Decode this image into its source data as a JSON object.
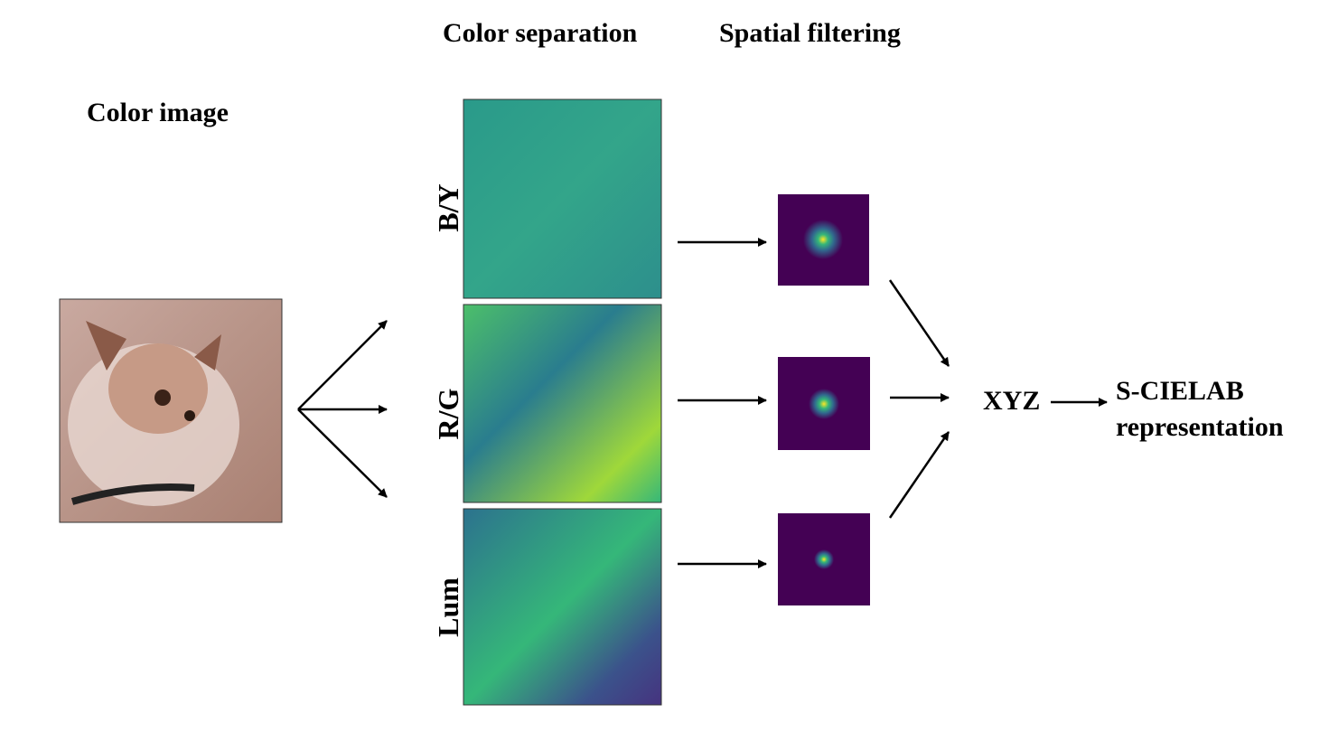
{
  "headers": {
    "color_separation": "Color separation",
    "spatial_filtering": "Spatial filtering"
  },
  "input": {
    "label": "Color image"
  },
  "channels": [
    {
      "label": "B/Y"
    },
    {
      "label": "R/G"
    },
    {
      "label": "Lum"
    }
  ],
  "output": {
    "xyz": "XYZ",
    "result": [
      "S-CIELAB",
      "representation"
    ]
  }
}
